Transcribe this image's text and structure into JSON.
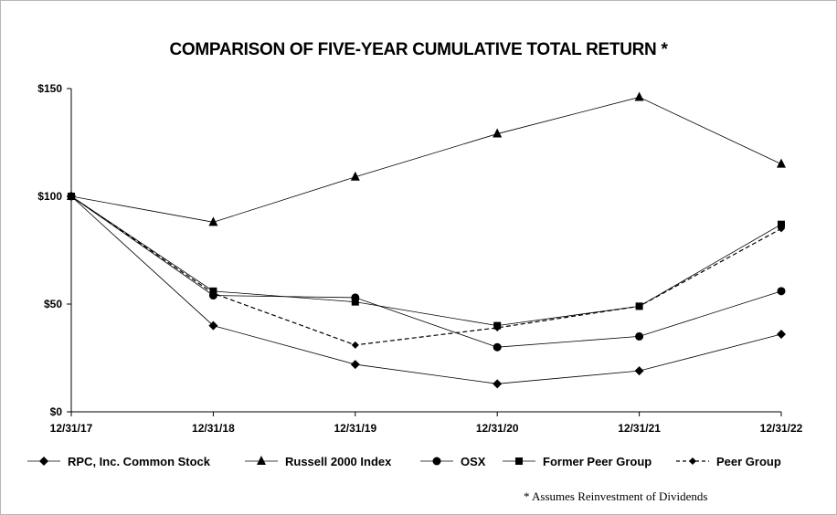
{
  "chart_data": {
    "type": "line",
    "title": "COMPARISON OF FIVE-YEAR CUMULATIVE TOTAL RETURN *",
    "categories": [
      "12/31/17",
      "12/31/18",
      "12/31/19",
      "12/31/20",
      "12/31/21",
      "12/31/22"
    ],
    "y_ticks": [
      "$0",
      "$50",
      "$100",
      "$150"
    ],
    "ylim": [
      0,
      150
    ],
    "grid": false,
    "legend_position": "bottom",
    "series": [
      {
        "name": "RPC, Inc. Common Stock",
        "values": [
          100,
          40,
          22,
          13,
          19,
          36
        ],
        "marker": "diamond",
        "dash": false
      },
      {
        "name": "Russell 2000 Index",
        "values": [
          100,
          88,
          109,
          129,
          146,
          115
        ],
        "marker": "triangle",
        "dash": false
      },
      {
        "name": "OSX",
        "values": [
          100,
          54,
          53,
          30,
          35,
          56
        ],
        "marker": "circle",
        "dash": false
      },
      {
        "name": "Former Peer Group",
        "values": [
          100,
          56,
          51,
          40,
          49,
          87
        ],
        "marker": "square",
        "dash": false
      },
      {
        "name": "Peer Group",
        "values": [
          100,
          55,
          31,
          39,
          49,
          85
        ],
        "marker": "diamond-small",
        "dash": true
      }
    ]
  },
  "footnote": "* Assumes Reinvestment of Dividends"
}
